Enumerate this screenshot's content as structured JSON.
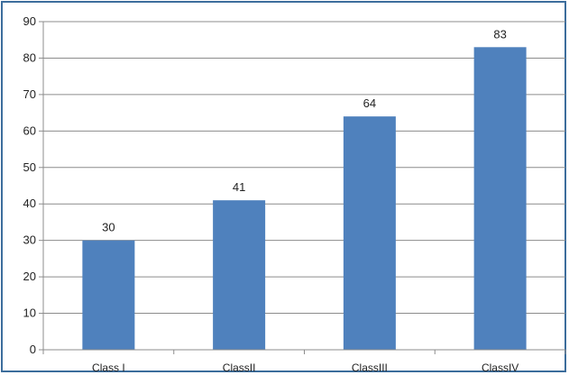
{
  "chart_data": {
    "type": "bar",
    "categories": [
      "Class I",
      "ClassII",
      "ClassIII",
      "ClassIV"
    ],
    "values": [
      30,
      41,
      64,
      83
    ],
    "title": "",
    "xlabel": "",
    "ylabel": "",
    "ylim": [
      0,
      90
    ],
    "yticks": [
      0,
      10,
      20,
      30,
      40,
      50,
      60,
      70,
      80,
      90
    ],
    "grid": true,
    "legend": "none",
    "data_labels": true,
    "colors": {
      "bar": "#4f81bd",
      "frame": "#3c6d9c",
      "grid": "#8c8c8c",
      "axis": "#8c8c8c"
    }
  }
}
